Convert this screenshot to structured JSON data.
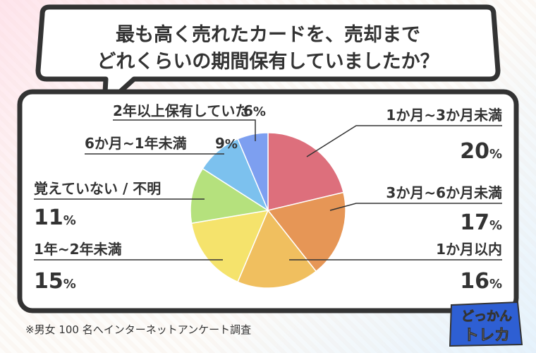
{
  "title_lines": [
    "最も高く売れたカードを、売却まで",
    "どれくらいの期間保有していましたか？"
  ],
  "footnote": "※男女 100 名へインターネットアンケート調査",
  "logo": {
    "line1": "どっかん",
    "line2": "トレカ"
  },
  "chart_data": {
    "type": "pie",
    "title": "最も高く売れたカードを、売却までどれくらいの期間保有していましたか？",
    "unit": "%",
    "slices": [
      {
        "label": "1か月~3か月未満",
        "value": 20,
        "color": "#dd6f7c"
      },
      {
        "label": "3か月~6か月未満",
        "value": 17,
        "color": "#e69656"
      },
      {
        "label": "1か月以内",
        "value": 16,
        "color": "#f0bf5f"
      },
      {
        "label": "1年~2年未満",
        "value": 15,
        "color": "#f5e36c"
      },
      {
        "label": "覚えていない / 不明",
        "value": 11,
        "color": "#b5e17d"
      },
      {
        "label": "6か月~1年未満",
        "value": 9,
        "color": "#7cc1ee"
      },
      {
        "label": "2年以上保有していた",
        "value": 6,
        "color": "#7d9ff0"
      }
    ]
  }
}
